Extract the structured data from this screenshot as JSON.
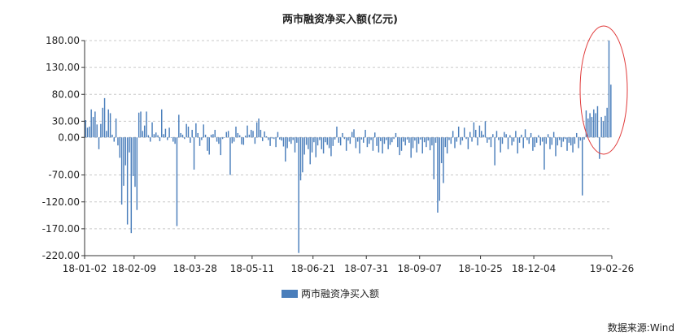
{
  "chart_data": {
    "type": "bar",
    "title": "两市融资净买入额(亿元)",
    "xlabel": "",
    "ylabel": "",
    "ylim": [
      -220,
      180
    ],
    "yticks": [
      "180.00",
      "130.00",
      "80.00",
      "30.00",
      "0.00",
      "-70.00",
      "-120.00",
      "-170.00",
      "-220.00"
    ],
    "ytick_values": [
      180,
      130,
      80,
      30,
      0,
      -70,
      -120,
      -170,
      -220
    ],
    "xticks": [
      "18-01-02",
      "18-02-09",
      "18-03-28",
      "18-05-11",
      "18-06-21",
      "18-07-31",
      "18-09-07",
      "18-10-25",
      "18-12-04",
      "19-02-26"
    ],
    "xtick_index": [
      0,
      26,
      58,
      88,
      120,
      148,
      176,
      208,
      236,
      313
    ],
    "grid": "horizontal dashed",
    "series": [
      {
        "name": "两市融资净买入额",
        "color": "#4a7ebb",
        "values": [
          32,
          18,
          20,
          52,
          38,
          48,
          24,
          -22,
          25,
          55,
          73,
          12,
          52,
          45,
          5,
          -8,
          35,
          -15,
          -38,
          -125,
          -90,
          -52,
          -162,
          -28,
          -178,
          -72,
          -92,
          -135,
          46,
          48,
          12,
          22,
          48,
          4,
          -8,
          28,
          6,
          9,
          4,
          -7,
          52,
          6,
          16,
          -5,
          18,
          0,
          -8,
          -12,
          -165,
          42,
          8,
          5,
          -3,
          25,
          20,
          -10,
          14,
          -60,
          26,
          8,
          -16,
          -5,
          24,
          5,
          -25,
          -32,
          5,
          6,
          14,
          -8,
          -12,
          -33,
          -3,
          0,
          10,
          12,
          -70,
          -11,
          -8,
          20,
          8,
          4,
          -13,
          -14,
          3,
          22,
          5,
          14,
          12,
          -12,
          28,
          35,
          14,
          -7,
          11,
          2,
          -5,
          -16,
          -2,
          -3,
          -18,
          10,
          -4,
          -6,
          -17,
          -45,
          -20,
          -8,
          -12,
          -5,
          -28,
          -10,
          -215,
          -80,
          -65,
          -32,
          -14,
          -22,
          -50,
          -28,
          -9,
          -37,
          -15,
          -5,
          -22,
          -30,
          -9,
          -14,
          -20,
          -35,
          -16,
          -4,
          20,
          -10,
          -15,
          8,
          -3,
          -25,
          -6,
          -12,
          10,
          15,
          -20,
          -8,
          -30,
          -4,
          -10,
          14,
          -18,
          -12,
          -5,
          -25,
          9,
          -16,
          -28,
          -7,
          -30,
          -12,
          -5,
          -22,
          -14,
          -9,
          -3,
          8,
          -18,
          -33,
          -25,
          -8,
          -15,
          -4,
          -10,
          -38,
          -20,
          -6,
          -28,
          -12,
          -4,
          -30,
          -9,
          -18,
          -6,
          -24,
          -15,
          -78,
          -10,
          -140,
          -118,
          -48,
          -85,
          -18,
          -30,
          -5,
          -12,
          12,
          -20,
          -8,
          20,
          -14,
          -6,
          18,
          -3,
          -22,
          10,
          -8,
          28,
          14,
          -15,
          22,
          12,
          5,
          30,
          -10,
          -4,
          -18,
          6,
          -52,
          12,
          -5,
          -28,
          -12,
          10,
          6,
          -22,
          4,
          -15,
          -8,
          12,
          -30,
          -10,
          5,
          -20,
          15,
          -5,
          -12,
          8,
          -25,
          -18,
          -10,
          4,
          -15,
          -8,
          -60,
          -12,
          6,
          -22,
          -14,
          10,
          -35,
          -15,
          -5,
          -18,
          -8,
          -3,
          -25,
          -10,
          -15,
          -28,
          -12,
          8,
          -20,
          -6,
          -108,
          -4,
          50,
          35,
          45,
          38,
          52,
          45,
          58,
          -40,
          38,
          30,
          40,
          55,
          180,
          98
        ]
      }
    ],
    "legend": {
      "label": "两市融资净买入额",
      "position": "bottom-center"
    },
    "annotation": {
      "shape": "ellipse",
      "color": "#e03a3a",
      "target": "19-02 spike"
    },
    "source": "数据来源:Wind"
  }
}
